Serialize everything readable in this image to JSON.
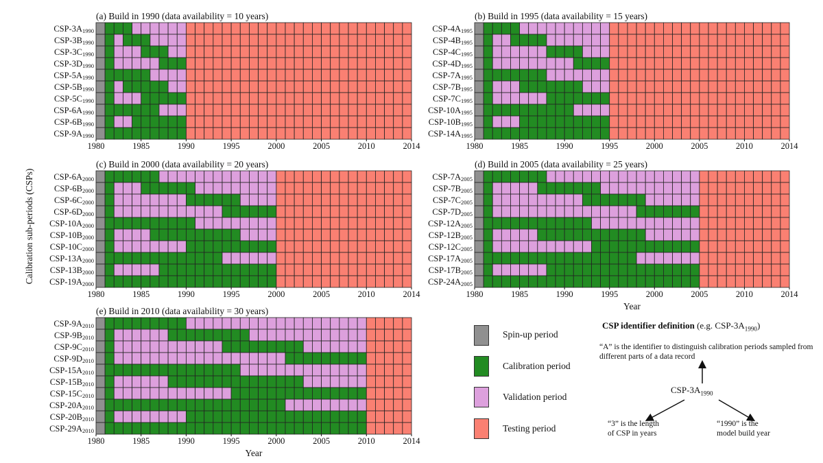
{
  "colors": {
    "spinup": "#909090",
    "calibration": "#228b22",
    "validation": "#dda0dd",
    "testing": "#fa8072"
  },
  "chart_data": {
    "type": "heatmap",
    "ylabel": "Calibration sub-periods (CSPs)",
    "xlabel": "Year",
    "x_start": 1980,
    "x_end": 2014,
    "xticks": [
      "1980",
      "1985",
      "1990",
      "1995",
      "2000",
      "2005",
      "2010",
      "2014"
    ],
    "panels": [
      {
        "title": "(a) Build in 1990 (data availability = 10 years)",
        "build": 1990,
        "show_xlabel": false,
        "rows": [
          {
            "base": "CSP-3A",
            "sub": "1990",
            "cal": [
              [
                1981,
                1983
              ]
            ]
          },
          {
            "base": "CSP-3B",
            "sub": "1990",
            "cal": [
              [
                1981,
                1981
              ],
              [
                1983,
                1985
              ]
            ]
          },
          {
            "base": "CSP-3C",
            "sub": "1990",
            "cal": [
              [
                1981,
                1981
              ],
              [
                1985,
                1987
              ]
            ]
          },
          {
            "base": "CSP-3D",
            "sub": "1990",
            "cal": [
              [
                1981,
                1981
              ],
              [
                1987,
                1989
              ]
            ]
          },
          {
            "base": "CSP-5A",
            "sub": "1990",
            "cal": [
              [
                1981,
                1985
              ]
            ]
          },
          {
            "base": "CSP-5B",
            "sub": "1990",
            "cal": [
              [
                1981,
                1981
              ],
              [
                1983,
                1987
              ]
            ]
          },
          {
            "base": "CSP-5C",
            "sub": "1990",
            "cal": [
              [
                1981,
                1981
              ],
              [
                1985,
                1989
              ]
            ]
          },
          {
            "base": "CSP-6A",
            "sub": "1990",
            "cal": [
              [
                1981,
                1986
              ]
            ]
          },
          {
            "base": "CSP-6B",
            "sub": "1990",
            "cal": [
              [
                1981,
                1981
              ],
              [
                1984,
                1989
              ]
            ]
          },
          {
            "base": "CSP-9A",
            "sub": "1990",
            "cal": [
              [
                1981,
                1989
              ]
            ]
          }
        ]
      },
      {
        "title": "(b) Build in 1995 (data availability = 15 years)",
        "build": 1995,
        "show_xlabel": false,
        "rows": [
          {
            "base": "CSP-4A",
            "sub": "1995",
            "cal": [
              [
                1981,
                1984
              ]
            ]
          },
          {
            "base": "CSP-4B",
            "sub": "1995",
            "cal": [
              [
                1981,
                1981
              ],
              [
                1984,
                1987
              ]
            ]
          },
          {
            "base": "CSP-4C",
            "sub": "1995",
            "cal": [
              [
                1981,
                1981
              ],
              [
                1988,
                1991
              ]
            ]
          },
          {
            "base": "CSP-4D",
            "sub": "1995",
            "cal": [
              [
                1981,
                1981
              ],
              [
                1991,
                1994
              ]
            ]
          },
          {
            "base": "CSP-7A",
            "sub": "1995",
            "cal": [
              [
                1981,
                1987
              ]
            ]
          },
          {
            "base": "CSP-7B",
            "sub": "1995",
            "cal": [
              [
                1981,
                1981
              ],
              [
                1985,
                1991
              ]
            ]
          },
          {
            "base": "CSP-7C",
            "sub": "1995",
            "cal": [
              [
                1981,
                1981
              ],
              [
                1988,
                1994
              ]
            ]
          },
          {
            "base": "CSP-10A",
            "sub": "1995",
            "cal": [
              [
                1981,
                1990
              ]
            ]
          },
          {
            "base": "CSP-10B",
            "sub": "1995",
            "cal": [
              [
                1981,
                1981
              ],
              [
                1985,
                1994
              ]
            ]
          },
          {
            "base": "CSP-14A",
            "sub": "1995",
            "cal": [
              [
                1981,
                1994
              ]
            ]
          }
        ]
      },
      {
        "title": "(c) Build in 2000 (data availability = 20 years)",
        "build": 2000,
        "show_xlabel": false,
        "rows": [
          {
            "base": "CSP-6A",
            "sub": "2000",
            "cal": [
              [
                1981,
                1986
              ]
            ]
          },
          {
            "base": "CSP-6B",
            "sub": "2000",
            "cal": [
              [
                1981,
                1981
              ],
              [
                1985,
                1990
              ]
            ]
          },
          {
            "base": "CSP-6C",
            "sub": "2000",
            "cal": [
              [
                1981,
                1981
              ],
              [
                1990,
                1995
              ]
            ]
          },
          {
            "base": "CSP-6D",
            "sub": "2000",
            "cal": [
              [
                1981,
                1981
              ],
              [
                1994,
                1999
              ]
            ]
          },
          {
            "base": "CSP-10A",
            "sub": "2000",
            "cal": [
              [
                1981,
                1990
              ]
            ]
          },
          {
            "base": "CSP-10B",
            "sub": "2000",
            "cal": [
              [
                1981,
                1981
              ],
              [
                1986,
                1995
              ]
            ]
          },
          {
            "base": "CSP-10C",
            "sub": "2000",
            "cal": [
              [
                1981,
                1981
              ],
              [
                1990,
                1999
              ]
            ]
          },
          {
            "base": "CSP-13A",
            "sub": "2000",
            "cal": [
              [
                1981,
                1993
              ]
            ]
          },
          {
            "base": "CSP-13B",
            "sub": "2000",
            "cal": [
              [
                1981,
                1981
              ],
              [
                1987,
                1999
              ]
            ]
          },
          {
            "base": "CSP-19A",
            "sub": "2000",
            "cal": [
              [
                1981,
                1999
              ]
            ]
          }
        ]
      },
      {
        "title": "(d) Build in 2005 (data availability = 25 years)",
        "build": 2005,
        "show_xlabel": true,
        "rows": [
          {
            "base": "CSP-7A",
            "sub": "2005",
            "cal": [
              [
                1981,
                1987
              ]
            ]
          },
          {
            "base": "CSP-7B",
            "sub": "2005",
            "cal": [
              [
                1981,
                1981
              ],
              [
                1987,
                1993
              ]
            ]
          },
          {
            "base": "CSP-7C",
            "sub": "2005",
            "cal": [
              [
                1981,
                1981
              ],
              [
                1992,
                1998
              ]
            ]
          },
          {
            "base": "CSP-7D",
            "sub": "2005",
            "cal": [
              [
                1981,
                1981
              ],
              [
                1998,
                2004
              ]
            ]
          },
          {
            "base": "CSP-12A",
            "sub": "2005",
            "cal": [
              [
                1981,
                1992
              ]
            ]
          },
          {
            "base": "CSP-12B",
            "sub": "2005",
            "cal": [
              [
                1981,
                1981
              ],
              [
                1987,
                1998
              ]
            ]
          },
          {
            "base": "CSP-12C",
            "sub": "2005",
            "cal": [
              [
                1981,
                1981
              ],
              [
                1993,
                2004
              ]
            ]
          },
          {
            "base": "CSP-17A",
            "sub": "2005",
            "cal": [
              [
                1981,
                1997
              ]
            ]
          },
          {
            "base": "CSP-17B",
            "sub": "2005",
            "cal": [
              [
                1981,
                1981
              ],
              [
                1988,
                2004
              ]
            ]
          },
          {
            "base": "CSP-24A",
            "sub": "2005",
            "cal": [
              [
                1981,
                2004
              ]
            ]
          }
        ]
      },
      {
        "title": "(e) Build in 2010 (data availability = 30 years)",
        "build": 2010,
        "show_xlabel": true,
        "rows": [
          {
            "base": "CSP-9A",
            "sub": "2010",
            "cal": [
              [
                1981,
                1989
              ]
            ]
          },
          {
            "base": "CSP-9B",
            "sub": "2010",
            "cal": [
              [
                1981,
                1981
              ],
              [
                1988,
                1996
              ]
            ]
          },
          {
            "base": "CSP-9C",
            "sub": "2010",
            "cal": [
              [
                1981,
                1981
              ],
              [
                1994,
                2002
              ]
            ]
          },
          {
            "base": "CSP-9D",
            "sub": "2010",
            "cal": [
              [
                1981,
                1981
              ],
              [
                2001,
                2009
              ]
            ]
          },
          {
            "base": "CSP-15A",
            "sub": "2010",
            "cal": [
              [
                1981,
                1995
              ]
            ]
          },
          {
            "base": "CSP-15B",
            "sub": "2010",
            "cal": [
              [
                1981,
                1981
              ],
              [
                1988,
                2002
              ]
            ]
          },
          {
            "base": "CSP-15C",
            "sub": "2010",
            "cal": [
              [
                1981,
                1981
              ],
              [
                1995,
                2009
              ]
            ]
          },
          {
            "base": "CSP-20A",
            "sub": "2010",
            "cal": [
              [
                1981,
                2000
              ]
            ]
          },
          {
            "base": "CSP-20B",
            "sub": "2010",
            "cal": [
              [
                1981,
                1981
              ],
              [
                1990,
                2009
              ]
            ]
          },
          {
            "base": "CSP-29A",
            "sub": "2010",
            "cal": [
              [
                1981,
                2009
              ]
            ]
          }
        ]
      }
    ]
  },
  "legend": {
    "spinup": "Spin-up period",
    "calibration": "Calibration period",
    "validation": "Validation period",
    "testing": "Testing period"
  },
  "definition": {
    "title_bold": "CSP identifier definition",
    "title_rest_prefix": " (e.g. CSP-3A",
    "title_sub": "1990",
    "title_suffix": ")",
    "a_text": "“A” is the identifier to distinguish calibration periods sampled from different parts of a data record",
    "center_base": "CSP-3A",
    "center_sub": "1990",
    "three_line1": "“3” is the length",
    "three_line2": "of CSP in years",
    "year_line1": "“1990” is the",
    "year_line2": "model build year"
  }
}
